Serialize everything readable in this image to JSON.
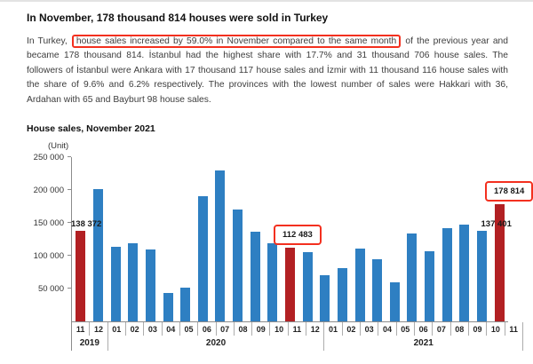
{
  "title": "In November, 178 thousand 814 houses were sold in Turkey",
  "paragraph": {
    "before": "In Turkey, ",
    "highlighted": "house sales increased by 59.0% in November compared to the same month",
    "after": " of the previous year and became 178 thousand 814. İstanbul had the highest share with 17.7% and 31 thousand 706 house sales. The followers of İstanbul were Ankara with 17 thousand 117 house sales and İzmir with 11 thousand 116 house sales with the share of 9.6% and 6.2% respectively. The provinces with the lowest number of sales were Hakkari with 36, Ardahan with 65 and Bayburt 98 house sales."
  },
  "chart": {
    "title": "House sales, November 2021",
    "unit_label": "(Unit)"
  },
  "chart_data": {
    "type": "bar",
    "title": "House sales, November 2021",
    "ylabel": "(Unit)",
    "ylim": [
      0,
      250000
    ],
    "yticks": [
      50000,
      100000,
      150000,
      200000,
      250000
    ],
    "ytick_labels": [
      "50 000",
      "100 000",
      "150 000",
      "200 000",
      "250 000"
    ],
    "grid": false,
    "legend": "none",
    "categories": [
      "11",
      "12",
      "01",
      "02",
      "03",
      "04",
      "05",
      "06",
      "07",
      "08",
      "09",
      "10",
      "11",
      "12",
      "01",
      "02",
      "03",
      "04",
      "05",
      "06",
      "07",
      "08",
      "09",
      "10",
      "11"
    ],
    "year_groups": [
      {
        "label": "2019",
        "span": 2
      },
      {
        "label": "2020",
        "span": 12
      },
      {
        "label": "2021",
        "span": 11
      }
    ],
    "values": [
      138372,
      201500,
      114000,
      119000,
      109000,
      43000,
      51000,
      190000,
      229500,
      170500,
      136500,
      119000,
      112483,
      105000,
      70500,
      81000,
      110500,
      95000,
      59000,
      134500,
      107500,
      141500,
      147000,
      137401,
      178814
    ],
    "highlight_indices": [
      0,
      12,
      24
    ],
    "annotations": [
      {
        "index": 0,
        "text": "138 372",
        "boxed": false
      },
      {
        "index": 12,
        "text": "112 483",
        "boxed": true
      },
      {
        "index": 23,
        "text": "137 401",
        "boxed": false
      },
      {
        "index": 24,
        "text": "178 814",
        "boxed": true
      }
    ],
    "colors": {
      "bar": "#2e7fc2",
      "highlight_bar": "#b22023",
      "annotation_box": "#f3301f",
      "axis": "#8c8c8c"
    }
  }
}
